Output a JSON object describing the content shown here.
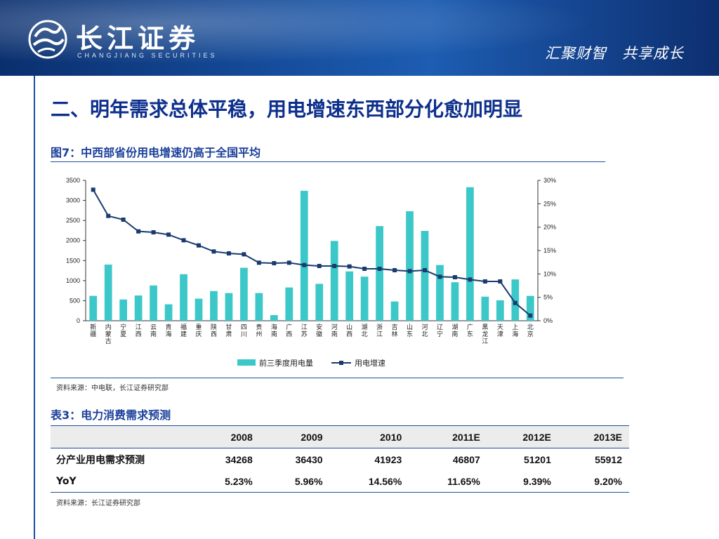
{
  "header": {
    "brand_cn": "长江证券",
    "brand_en": "CHANGJIANG SECURITIES",
    "slogan": "汇聚财智　共享成长"
  },
  "slide": {
    "title": "二、明年需求总体平稳，用电增速东西部分化愈加明显"
  },
  "figure": {
    "caption": "图7：中西部省份用电增速仍高于全国平均",
    "source": "资料来源：中电联，长江证券研究部"
  },
  "chart_data": {
    "type": "bar",
    "categories": [
      "新疆",
      "内蒙古",
      "宁夏",
      "江西",
      "云南",
      "青海",
      "福建",
      "重庆",
      "陕西",
      "甘肃",
      "四川",
      "贵州",
      "海南",
      "广西",
      "江苏",
      "安徽",
      "河南",
      "山西",
      "湖北",
      "浙江",
      "吉林",
      "山东",
      "河北",
      "辽宁",
      "湖南",
      "广东",
      "黑龙江",
      "天津",
      "上海",
      "北京"
    ],
    "series": [
      {
        "name": "前三季度用电量",
        "type": "bar",
        "axis": "left",
        "color": "#3cc8c8",
        "values": [
          620,
          1400,
          530,
          630,
          880,
          410,
          1160,
          550,
          740,
          690,
          1320,
          690,
          140,
          830,
          3240,
          920,
          1990,
          1230,
          1100,
          2360,
          480,
          2730,
          2240,
          1390,
          960,
          3330,
          600,
          510,
          1030,
          620
        ]
      },
      {
        "name": "用电增速",
        "type": "line",
        "axis": "right",
        "color": "#1a3b6e",
        "values": [
          28.0,
          22.4,
          21.6,
          19.1,
          18.9,
          18.4,
          17.2,
          16.1,
          14.8,
          14.4,
          14.2,
          12.4,
          12.3,
          12.4,
          11.9,
          11.7,
          11.7,
          11.6,
          11.1,
          11.1,
          10.8,
          10.6,
          10.8,
          9.4,
          9.3,
          8.8,
          8.4,
          8.4,
          3.8,
          1.1
        ]
      }
    ],
    "y_left": {
      "min": 0,
      "max": 3500,
      "ticks": [
        "0",
        "500",
        "1000",
        "1500",
        "2000",
        "2500",
        "3000",
        "3500"
      ]
    },
    "y_right": {
      "min": 0,
      "max": 30,
      "ticks": [
        "0%",
        "5%",
        "10%",
        "15%",
        "20%",
        "25%",
        "30%"
      ]
    },
    "legend_position": "bottom",
    "grid": false
  },
  "table": {
    "caption": "表3：电力消费需求预测",
    "headers": [
      "",
      "2008",
      "2009",
      "2010",
      "2011E",
      "2012E",
      "2013E"
    ],
    "rows": [
      [
        "分产业用电需求预测",
        "34268",
        "36430",
        "41923",
        "46807",
        "51201",
        "55912"
      ],
      [
        "YoY",
        "5.23%",
        "5.96%",
        "14.56%",
        "11.65%",
        "9.39%",
        "9.20%"
      ]
    ],
    "source": "资料来源：长江证券研究部"
  }
}
